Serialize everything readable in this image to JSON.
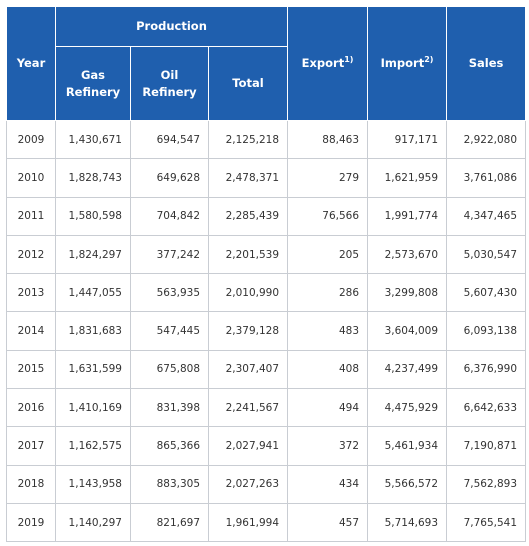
{
  "table": {
    "header": {
      "year": "Year",
      "production": "Production",
      "gas_refinery": "Gas Refinery",
      "oil_refinery": "Oil Refinery",
      "total": "Total",
      "export": "Export",
      "export_note": "1)",
      "import": "Import",
      "import_note": "2)",
      "sales": "Sales"
    },
    "rows": [
      [
        "2009",
        "1,430,671",
        "694,547",
        "2,125,218",
        "88,463",
        "917,171",
        "2,922,080"
      ],
      [
        "2010",
        "1,828,743",
        "649,628",
        "2,478,371",
        "279",
        "1,621,959",
        "3,761,086"
      ],
      [
        "2011",
        "1,580,598",
        "704,842",
        "2,285,439",
        "76,566",
        "1,991,774",
        "4,347,465"
      ],
      [
        "2012",
        "1,824,297",
        "377,242",
        "2,201,539",
        "205",
        "2,573,670",
        "5,030,547"
      ],
      [
        "2013",
        "1,447,055",
        "563,935",
        "2,010,990",
        "286",
        "3,299,808",
        "5,607,430"
      ],
      [
        "2014",
        "1,831,683",
        "547,445",
        "2,379,128",
        "483",
        "3,604,009",
        "6,093,138"
      ],
      [
        "2015",
        "1,631,599",
        "675,808",
        "2,307,407",
        "408",
        "4,237,499",
        "6,376,990"
      ],
      [
        "2016",
        "1,410,169",
        "831,398",
        "2,241,567",
        "494",
        "4,475,929",
        "6,642,633"
      ],
      [
        "2017",
        "1,162,575",
        "865,366",
        "2,027,941",
        "372",
        "5,461,934",
        "7,190,871"
      ],
      [
        "2018",
        "1,143,958",
        "883,305",
        "2,027,263",
        "434",
        "5,566,572",
        "7,562,893"
      ],
      [
        "2019",
        "1,140,297",
        "821,697",
        "1,961,994",
        "457",
        "5,714,693",
        "7,765,541"
      ]
    ]
  }
}
